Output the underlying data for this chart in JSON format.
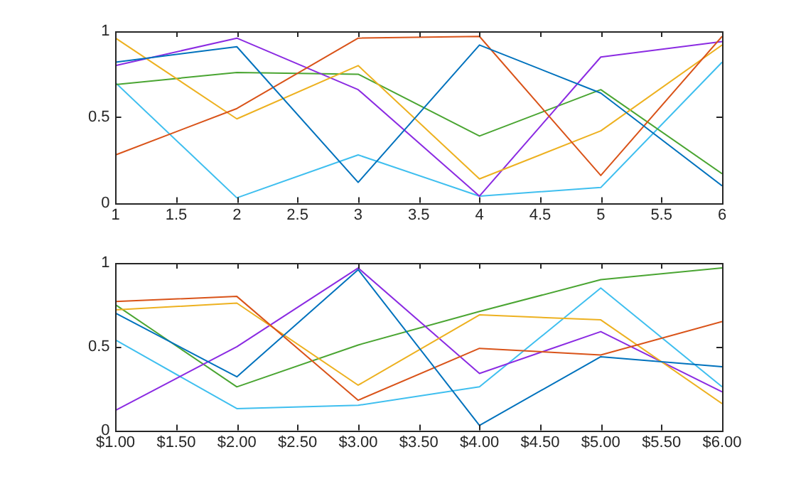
{
  "chart_data": [
    {
      "type": "line",
      "x": [
        1,
        2,
        3,
        4,
        5,
        6
      ],
      "xlim": [
        1,
        6
      ],
      "xticks": [
        1,
        1.5,
        2,
        2.5,
        3,
        3.5,
        4,
        4.5,
        5,
        5.5,
        6
      ],
      "ylim": [
        0,
        1
      ],
      "yticks": [
        0,
        0.5,
        1
      ],
      "grid": false,
      "legend": false,
      "marker": "none",
      "series": [
        {
          "color": "#0072bd",
          "values": [
            0.82,
            0.91,
            0.12,
            0.92,
            0.64,
            0.1
          ]
        },
        {
          "color": "#d95319",
          "values": [
            0.28,
            0.55,
            0.96,
            0.97,
            0.16,
            0.97
          ]
        },
        {
          "color": "#edb120",
          "values": [
            0.96,
            0.49,
            0.8,
            0.14,
            0.42,
            0.92
          ]
        },
        {
          "color": "#8b2be2",
          "values": [
            0.8,
            0.96,
            0.66,
            0.04,
            0.85,
            0.94
          ]
        },
        {
          "color": "#4aa532",
          "values": [
            0.69,
            0.76,
            0.75,
            0.39,
            0.66,
            0.17
          ]
        },
        {
          "color": "#3fbfef",
          "values": [
            0.7,
            0.03,
            0.28,
            0.04,
            0.09,
            0.82
          ]
        }
      ]
    },
    {
      "type": "line",
      "x": [
        1,
        2,
        3,
        4,
        5,
        6
      ],
      "xlim": [
        1,
        6
      ],
      "xticks": [
        {
          "value": 1,
          "label": "$1.00"
        },
        {
          "value": 1.5,
          "label": "$1.50"
        },
        {
          "value": 2,
          "label": "$2.00"
        },
        {
          "value": 2.5,
          "label": "$2.50"
        },
        {
          "value": 3,
          "label": "$3.00"
        },
        {
          "value": 3.5,
          "label": "$3.50"
        },
        {
          "value": 4,
          "label": "$4.00"
        },
        {
          "value": 4.5,
          "label": "$4.50"
        },
        {
          "value": 5,
          "label": "$5.00"
        },
        {
          "value": 5.5,
          "label": "$5.50"
        },
        {
          "value": 6,
          "label": "$6.00"
        }
      ],
      "ylim": [
        0,
        1
      ],
      "yticks": [
        0,
        0.5,
        1
      ],
      "grid": false,
      "legend": false,
      "marker": "none",
      "series": [
        {
          "color": "#0072bd",
          "values": [
            0.7,
            0.32,
            0.96,
            0.03,
            0.44,
            0.38
          ]
        },
        {
          "color": "#d95319",
          "values": [
            0.77,
            0.8,
            0.18,
            0.49,
            0.45,
            0.65
          ]
        },
        {
          "color": "#edb120",
          "values": [
            0.72,
            0.76,
            0.27,
            0.69,
            0.66,
            0.16
          ]
        },
        {
          "color": "#8b2be2",
          "values": [
            0.12,
            0.5,
            0.97,
            0.34,
            0.59,
            0.23
          ]
        },
        {
          "color": "#4aa532",
          "values": [
            0.75,
            0.26,
            0.51,
            0.71,
            0.9,
            0.97
          ]
        },
        {
          "color": "#3fbfef",
          "values": [
            0.54,
            0.13,
            0.15,
            0.26,
            0.85,
            0.26
          ]
        }
      ]
    }
  ]
}
